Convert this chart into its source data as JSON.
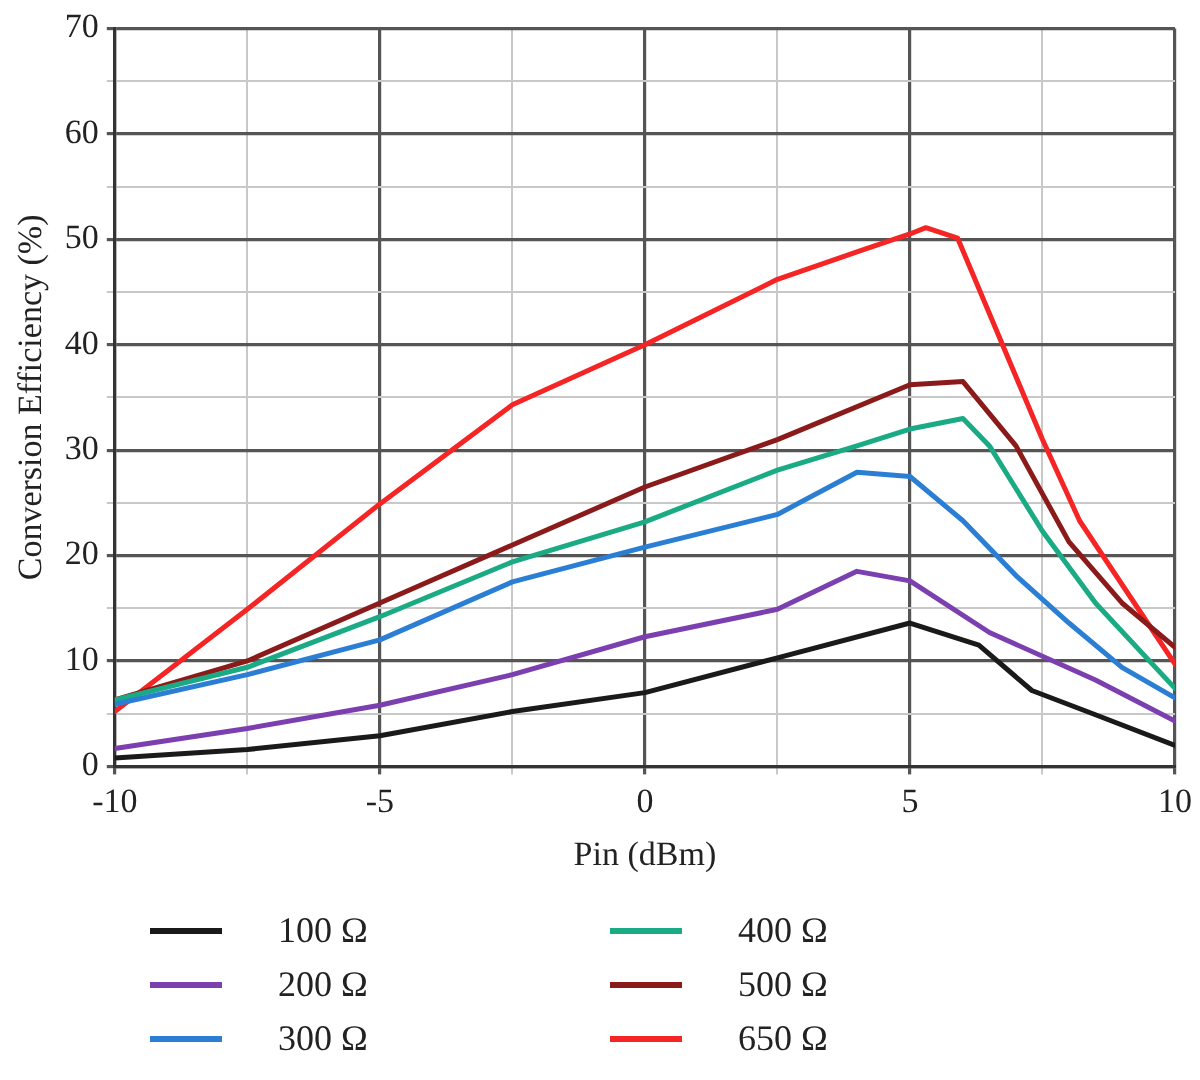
{
  "chart_data": {
    "type": "line",
    "xlabel": "Pin (dBm)",
    "ylabel": "Conversion Efficiency (%)",
    "xlim": [
      -10,
      10
    ],
    "xticks": [
      -10,
      {
        "value": -7.5,
        "label": null
      },
      -5,
      {
        "value": -2.5,
        "label": null
      },
      0,
      {
        "value": 2.5,
        "label": null
      },
      5,
      {
        "value": 7.5,
        "label": null
      },
      10
    ],
    "ylim": [
      0,
      70
    ],
    "yticks": [
      0,
      {
        "value": 5,
        "label": null
      },
      10,
      {
        "value": 15,
        "label": null
      },
      20,
      {
        "value": 25,
        "label": null
      },
      30,
      {
        "value": 35,
        "label": null
      },
      40,
      {
        "value": 45,
        "label": null
      },
      50,
      {
        "value": 55,
        "label": null
      },
      60,
      {
        "value": 65,
        "label": null
      },
      70
    ],
    "grid": true,
    "legend": "bottom",
    "marker": "none",
    "line_style": "solid",
    "series": [
      {
        "name": "100 Ω",
        "color": "#1a1a1a",
        "x": [
          -10,
          -7.5,
          -5,
          -2.5,
          0,
          2.5,
          5,
          6.3,
          7.3,
          8.5,
          10
        ],
        "values": [
          0.8,
          1.6,
          2.9,
          5.2,
          7,
          10.3,
          13.6,
          11.5,
          7.2,
          4.9,
          2.0
        ]
      },
      {
        "name": "200 Ω",
        "color": "#7b3fb0",
        "x": [
          -10,
          -7.5,
          -5,
          -2.5,
          0,
          2.5,
          4,
          5,
          6.5,
          8.5,
          10
        ],
        "values": [
          1.7,
          3.6,
          5.8,
          8.7,
          12.3,
          14.9,
          18.5,
          17.6,
          12.7,
          8.2,
          4.3
        ]
      },
      {
        "name": "300 Ω",
        "color": "#2a7fd4",
        "x": [
          -10,
          -7.5,
          -5,
          -2.5,
          0,
          2.5,
          4,
          5,
          6,
          7,
          8,
          9,
          10
        ],
        "values": [
          5.9,
          8.7,
          12.0,
          17.5,
          20.8,
          23.9,
          27.9,
          27.5,
          23.3,
          18.1,
          13.6,
          9.4,
          6.5
        ]
      },
      {
        "name": "400 Ω",
        "color": "#1aab85",
        "x": [
          -10,
          -7.5,
          -5,
          -2.5,
          0,
          2.5,
          4,
          5,
          6,
          6.5,
          7.5,
          8.5,
          10
        ],
        "values": [
          6.3,
          9.4,
          14.2,
          19.4,
          23.2,
          28.1,
          30.4,
          32,
          33,
          30.4,
          22.3,
          15.5,
          7.4
        ]
      },
      {
        "name": "500 Ω",
        "color": "#8b1a1a",
        "x": [
          -10,
          -7.5,
          -5,
          -2.5,
          0,
          2.5,
          5,
          6,
          7,
          8,
          9,
          10
        ],
        "values": [
          6.3,
          10,
          15.5,
          21,
          26.5,
          31,
          36.2,
          36.5,
          30.4,
          21.3,
          15.5,
          11.3
        ]
      },
      {
        "name": "650 Ω",
        "color": "#f52525",
        "x": [
          -10,
          -7.5,
          -5,
          -2.5,
          0,
          2.5,
          4,
          5,
          5.3,
          5.9,
          7.5,
          8.2,
          10
        ],
        "values": [
          5.2,
          14.9,
          24.9,
          34.3,
          40,
          46.2,
          48.8,
          50.5,
          51.1,
          50.1,
          31,
          23.3,
          9.7
        ]
      }
    ]
  }
}
